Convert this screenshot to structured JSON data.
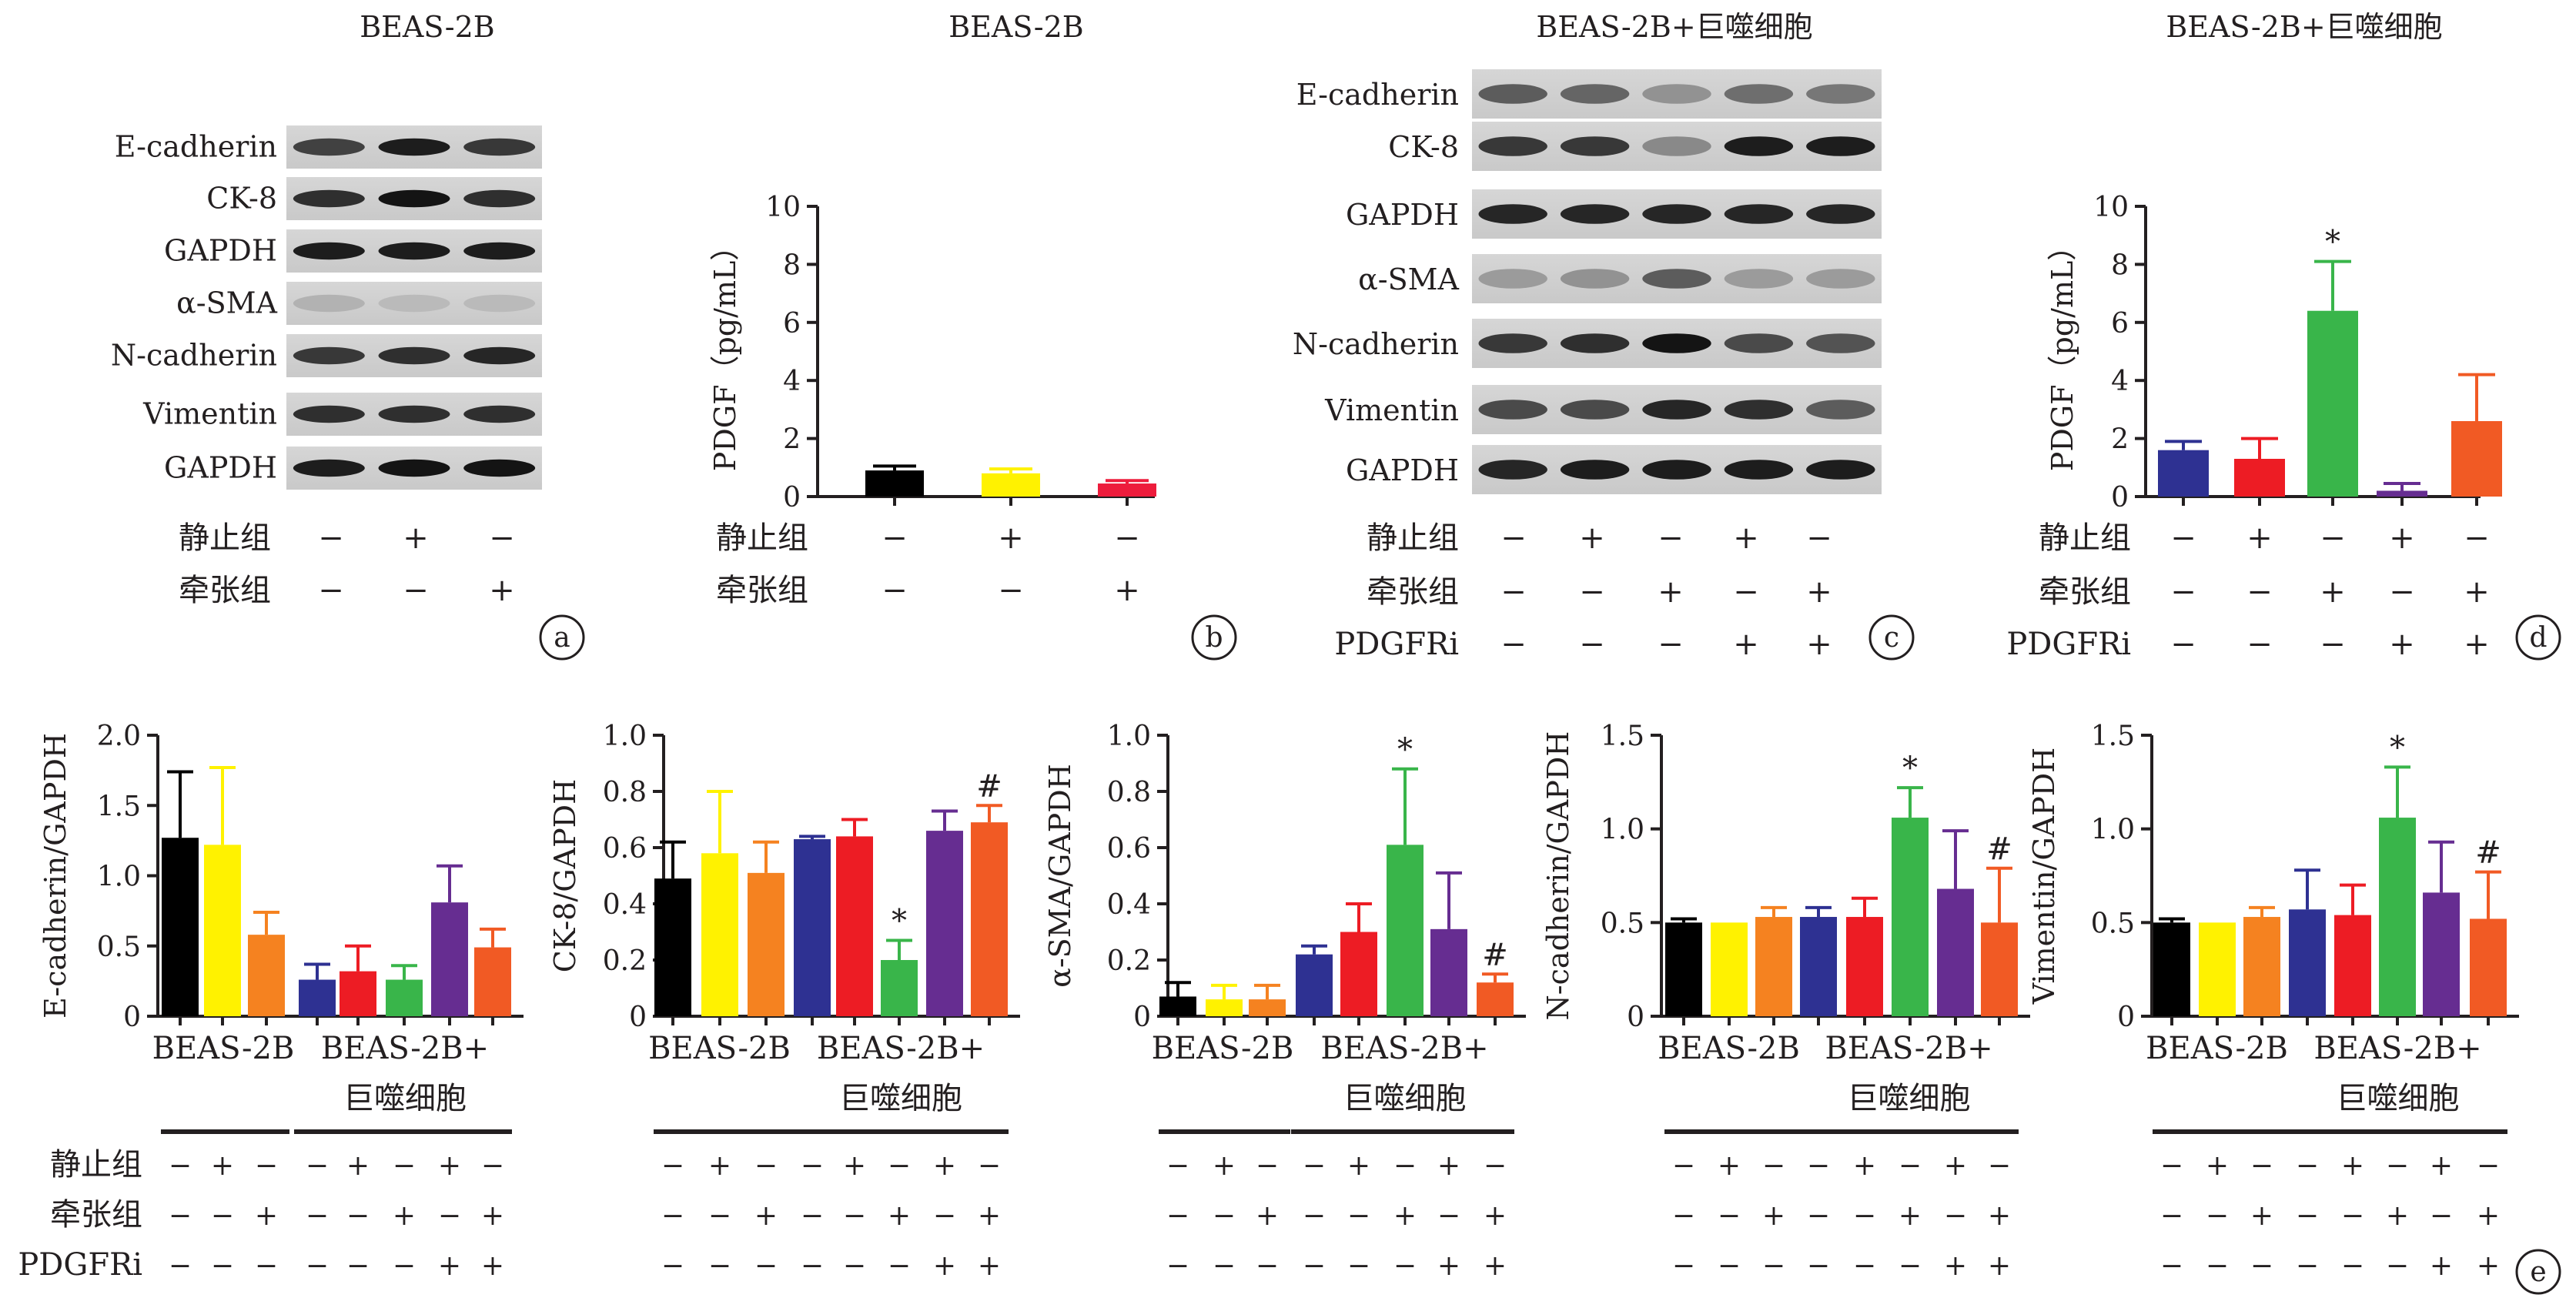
{
  "panel_labels": [
    "a",
    "b",
    "c",
    "d",
    "e"
  ],
  "panel_a": {
    "title": "BEAS-2B",
    "bands": [
      "E-cadherin",
      "CK-8",
      "GAPDH",
      "α-SMA",
      "N-cadherin",
      "Vimentin",
      "GAPDH"
    ],
    "conditions": [
      {
        "label": "静止组",
        "signs": [
          "−",
          "+",
          "−"
        ]
      },
      {
        "label": "牵张组",
        "signs": [
          "−",
          "−",
          "+"
        ]
      }
    ]
  },
  "panel_c": {
    "title": "BEAS-2B+巨噬细胞",
    "bands": [
      "E-cadherin",
      "CK-8",
      "GAPDH",
      "α-SMA",
      "N-cadherin",
      "Vimentin",
      "GAPDH"
    ],
    "conditions": [
      {
        "label": "静止组",
        "signs": [
          "−",
          "+",
          "−",
          "+",
          "−"
        ]
      },
      {
        "label": "牵张组",
        "signs": [
          "−",
          "−",
          "+",
          "−",
          "+"
        ]
      },
      {
        "label": "PDGFRi",
        "signs": [
          "−",
          "−",
          "−",
          "+",
          "+"
        ]
      }
    ]
  },
  "panel_e": {
    "group_labels": {
      "left": "BEAS-2B",
      "right_line1": "BEAS-2B+",
      "right_line2": "巨噬细胞"
    },
    "conditions": [
      {
        "label": "静止组",
        "signs": [
          "−",
          "+",
          "−",
          "−",
          "+",
          "−",
          "+",
          "−"
        ]
      },
      {
        "label": "牵张组",
        "signs": [
          "−",
          "−",
          "+",
          "−",
          "−",
          "+",
          "−",
          "+"
        ]
      },
      {
        "label": "PDGFRi",
        "signs": [
          "−",
          "−",
          "−",
          "−",
          "−",
          "−",
          "+",
          "+"
        ]
      }
    ]
  },
  "chart_data": [
    {
      "id": "b",
      "type": "bar",
      "title": "BEAS-2B",
      "ylabel": "PDGF（pg/mL）",
      "ylim": [
        0,
        10
      ],
      "yticks": [
        "0",
        "2",
        "4",
        "6",
        "8",
        "10"
      ],
      "values": [
        0.9,
        0.8,
        0.45
      ],
      "errors": [
        0.15,
        0.15,
        0.1
      ],
      "colors": [
        "#000000",
        "#fff200",
        "#ed1c3c"
      ],
      "annotations": [
        "",
        "",
        ""
      ],
      "conditions": [
        {
          "label": "静止组",
          "signs": [
            "−",
            "+",
            "−"
          ]
        },
        {
          "label": "牵张组",
          "signs": [
            "−",
            "−",
            "+"
          ]
        }
      ]
    },
    {
      "id": "d",
      "type": "bar",
      "title": "BEAS-2B+巨噬细胞",
      "ylabel": "PDGF（pg/mL）",
      "ylim": [
        0,
        10
      ],
      "yticks": [
        "0",
        "2",
        "4",
        "6",
        "8",
        "10"
      ],
      "values": [
        1.6,
        1.3,
        6.4,
        0.2,
        2.6
      ],
      "errors": [
        0.3,
        0.7,
        1.7,
        0.25,
        1.6
      ],
      "colors": [
        "#2e3192",
        "#ed1c24",
        "#39b54a",
        "#662d91",
        "#f15a24"
      ],
      "annotations": [
        "",
        "",
        "*",
        "",
        ""
      ],
      "conditions": [
        {
          "label": "静止组",
          "signs": [
            "−",
            "+",
            "−",
            "+",
            "−"
          ]
        },
        {
          "label": "牵张组",
          "signs": [
            "−",
            "−",
            "+",
            "−",
            "+"
          ]
        },
        {
          "label": "PDGFRi",
          "signs": [
            "−",
            "−",
            "−",
            "+",
            "+"
          ]
        }
      ]
    },
    {
      "id": "e1",
      "type": "bar",
      "ylabel": "E-cadherin/GAPDH",
      "ylim": [
        0,
        2.0
      ],
      "yticks": [
        "0",
        "0.5",
        "1.0",
        "1.5",
        "2.0"
      ],
      "values": [
        1.27,
        1.22,
        0.58,
        0.26,
        0.32,
        0.26,
        0.81,
        0.49
      ],
      "errors": [
        0.47,
        0.55,
        0.16,
        0.11,
        0.18,
        0.1,
        0.26,
        0.13
      ],
      "annotations": [
        "",
        "",
        "",
        "",
        "",
        "",
        "",
        ""
      ]
    },
    {
      "id": "e2",
      "type": "bar",
      "ylabel": "CK-8/GAPDH",
      "ylim": [
        0,
        1.0
      ],
      "yticks": [
        "0",
        "0.2",
        "0.4",
        "0.6",
        "0.8",
        "1.0"
      ],
      "values": [
        0.49,
        0.58,
        0.51,
        0.63,
        0.64,
        0.2,
        0.66,
        0.69
      ],
      "errors": [
        0.13,
        0.22,
        0.11,
        0.01,
        0.06,
        0.07,
        0.07,
        0.06
      ],
      "annotations": [
        "",
        "",
        "",
        "",
        "",
        "*",
        "",
        "#"
      ]
    },
    {
      "id": "e3",
      "type": "bar",
      "ylabel": "α-SMA/GAPDH",
      "ylim": [
        0,
        1.0
      ],
      "yticks": [
        "0",
        "0.2",
        "0.4",
        "0.6",
        "0.8",
        "1.0"
      ],
      "values": [
        0.07,
        0.06,
        0.06,
        0.22,
        0.3,
        0.61,
        0.31,
        0.12
      ],
      "errors": [
        0.05,
        0.05,
        0.05,
        0.03,
        0.1,
        0.27,
        0.2,
        0.03
      ],
      "annotations": [
        "",
        "",
        "",
        "",
        "",
        "*",
        "",
        "#"
      ]
    },
    {
      "id": "e4",
      "type": "bar",
      "ylabel": "N-cadherin/GAPDH",
      "ylim": [
        0,
        1.5
      ],
      "yticks": [
        "0",
        "0.5",
        "1.0",
        "1.5"
      ],
      "values": [
        0.5,
        0.5,
        0.53,
        0.53,
        0.53,
        1.06,
        0.68,
        0.5
      ],
      "errors": [
        0.02,
        0.0,
        0.05,
        0.05,
        0.1,
        0.16,
        0.31,
        0.29
      ],
      "annotations": [
        "",
        "",
        "",
        "",
        "",
        "*",
        "",
        "#"
      ]
    },
    {
      "id": "e5",
      "type": "bar",
      "ylabel": "Vimentin/GAPDH",
      "ylim": [
        0,
        1.5
      ],
      "yticks": [
        "0",
        "0.5",
        "1.0",
        "1.5"
      ],
      "values": [
        0.5,
        0.5,
        0.53,
        0.57,
        0.54,
        1.06,
        0.66,
        0.52
      ],
      "errors": [
        0.02,
        0.0,
        0.05,
        0.21,
        0.16,
        0.27,
        0.27,
        0.25
      ],
      "annotations": [
        "",
        "",
        "",
        "",
        "",
        "*",
        "",
        "#"
      ]
    }
  ],
  "colors_e": [
    "#000000",
    "#fff200",
    "#f58220",
    "#2e3192",
    "#ed1c24",
    "#39b54a",
    "#662d91",
    "#f15a24"
  ]
}
